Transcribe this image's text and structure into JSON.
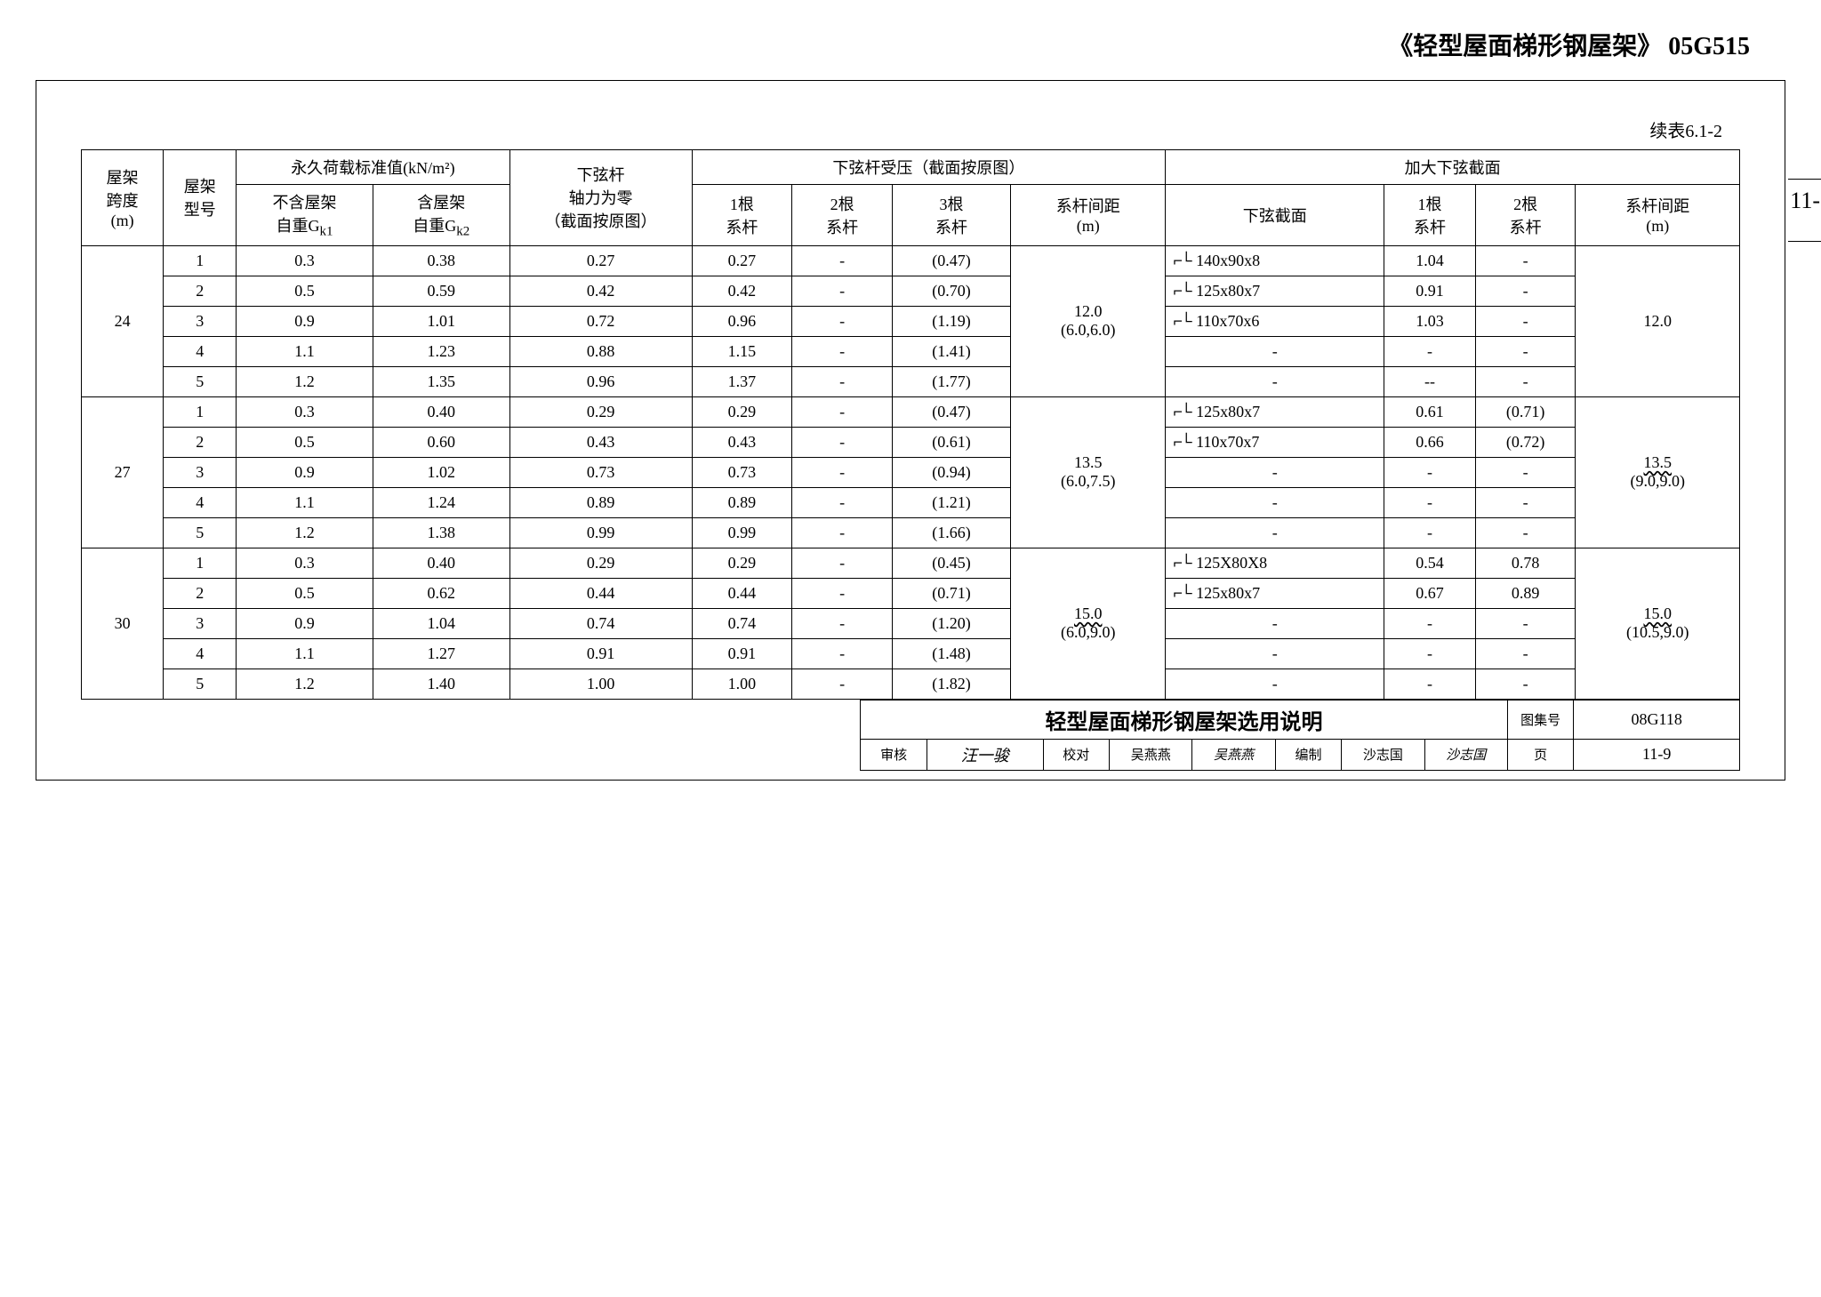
{
  "page": {
    "title": "《轻型屋面梯形钢屋架》 05G515",
    "table_label": "续表6.1-2",
    "side_note": "11-"
  },
  "headers": {
    "span": "屋架\n跨度\n(m)",
    "model": "屋架\n型号",
    "load_group": "永久荷载标准值(kN/m²)",
    "gk1": "不含屋架\n自重Gk1",
    "gk2": "含屋架\n自重Gk2",
    "axial": "下弦杆\n轴力为零\n（截面按原图）",
    "chord_group": "下弦杆受压（截面按原图）",
    "tie1": "1根\n系杆",
    "tie2": "2根\n系杆",
    "tie3": "3根\n系杆",
    "spacing": "系杆间距\n(m)",
    "enlarge_group": "加大下弦截面",
    "section": "下弦截面",
    "e_tie1": "1根\n系杆",
    "e_tie2": "2根\n系杆",
    "e_spacing": "系杆间距\n(m)"
  },
  "angle_symbol": "⌐└",
  "rows": [
    {
      "span": "24",
      "model": "1",
      "gk1": "0.3",
      "gk2": "0.38",
      "ax": "0.27",
      "t1": "0.27",
      "t2": "-",
      "t3": "(0.47)",
      "sp": "12.0\n(6.0,6.0)",
      "sec": "140x90x8",
      "et1": "1.04",
      "et2": "-",
      "esp": "12.0",
      "sec_sym": true,
      "sp_wavy": false,
      "esp_wavy": false
    },
    {
      "span": "",
      "model": "2",
      "gk1": "0.5",
      "gk2": "0.59",
      "ax": "0.42",
      "t1": "0.42",
      "t2": "-",
      "t3": "(0.70)",
      "sp": "",
      "sec": "125x80x7",
      "et1": "0.91",
      "et2": "-",
      "esp": "",
      "sec_sym": true
    },
    {
      "span": "",
      "model": "3",
      "gk1": "0.9",
      "gk2": "1.01",
      "ax": "0.72",
      "t1": "0.96",
      "t2": "-",
      "t3": "(1.19)",
      "sp": "",
      "sec": "110x70x6",
      "et1": "1.03",
      "et2": "-",
      "esp": "",
      "sec_sym": true
    },
    {
      "span": "",
      "model": "4",
      "gk1": "1.1",
      "gk2": "1.23",
      "ax": "0.88",
      "t1": "1.15",
      "t2": "-",
      "t3": "(1.41)",
      "sp": "",
      "sec": "-",
      "et1": "-",
      "et2": "-",
      "esp": "",
      "sec_sym": false
    },
    {
      "span": "",
      "model": "5",
      "gk1": "1.2",
      "gk2": "1.35",
      "ax": "0.96",
      "t1": "1.37",
      "t2": "-",
      "t3": "(1.77)",
      "sp": "",
      "sec": "-",
      "et1": "--",
      "et2": "-",
      "esp": "",
      "sec_sym": false
    },
    {
      "span": "27",
      "model": "1",
      "gk1": "0.3",
      "gk2": "0.40",
      "ax": "0.29",
      "t1": "0.29",
      "t2": "-",
      "t3": "(0.47)",
      "sp": "13.5\n(6.0,7.5)",
      "sec": "125x80x7",
      "et1": "0.61",
      "et2": "(0.71)",
      "esp": "13.5\n(9.0,9.0)",
      "sec_sym": true,
      "sp_wavy": false,
      "esp_wavy": true
    },
    {
      "span": "",
      "model": "2",
      "gk1": "0.5",
      "gk2": "0.60",
      "ax": "0.43",
      "t1": "0.43",
      "t2": "-",
      "t3": "(0.61)",
      "sp": "",
      "sec": "110x70x7",
      "et1": "0.66",
      "et2": "(0.72)",
      "esp": "",
      "sec_sym": true
    },
    {
      "span": "",
      "model": "3",
      "gk1": "0.9",
      "gk2": "1.02",
      "ax": "0.73",
      "t1": "0.73",
      "t2": "-",
      "t3": "(0.94)",
      "sp": "",
      "sec": "-",
      "et1": "-",
      "et2": "-",
      "esp": "",
      "sec_sym": false
    },
    {
      "span": "",
      "model": "4",
      "gk1": "1.1",
      "gk2": "1.24",
      "ax": "0.89",
      "t1": "0.89",
      "t2": "-",
      "t3": "(1.21)",
      "sp": "",
      "sec": "-",
      "et1": "-",
      "et2": "-",
      "esp": "",
      "sec_sym": false
    },
    {
      "span": "",
      "model": "5",
      "gk1": "1.2",
      "gk2": "1.38",
      "ax": "0.99",
      "t1": "0.99",
      "t2": "-",
      "t3": "(1.66)",
      "sp": "",
      "sec": "-",
      "et1": "-",
      "et2": "-",
      "esp": "",
      "sec_sym": false
    },
    {
      "span": "30",
      "model": "1",
      "gk1": "0.3",
      "gk2": "0.40",
      "ax": "0.29",
      "t1": "0.29",
      "t2": "-",
      "t3": "(0.45)",
      "sp": "15.0\n(6.0,9.0)",
      "sec": "125X80X8",
      "et1": "0.54",
      "et2": "0.78",
      "esp": "15.0\n(10.5,9.0)",
      "sec_sym": true,
      "sp_wavy": true,
      "esp_wavy": true
    },
    {
      "span": "",
      "model": "2",
      "gk1": "0.5",
      "gk2": "0.62",
      "ax": "0.44",
      "t1": "0.44",
      "t2": "-",
      "t3": "(0.71)",
      "sp": "",
      "sec": "125x80x7",
      "et1": "0.67",
      "et2": "0.89",
      "esp": "",
      "sec_sym": true
    },
    {
      "span": "",
      "model": "3",
      "gk1": "0.9",
      "gk2": "1.04",
      "ax": "0.74",
      "t1": "0.74",
      "t2": "-",
      "t3": "(1.20)",
      "sp": "",
      "sec": "-",
      "et1": "-",
      "et2": "-",
      "esp": "",
      "sec_sym": false
    },
    {
      "span": "",
      "model": "4",
      "gk1": "1.1",
      "gk2": "1.27",
      "ax": "0.91",
      "t1": "0.91",
      "t2": "-",
      "t3": "(1.48)",
      "sp": "",
      "sec": "-",
      "et1": "-",
      "et2": "-",
      "esp": "",
      "sec_sym": false
    },
    {
      "span": "",
      "model": "5",
      "gk1": "1.2",
      "gk2": "1.40",
      "ax": "1.00",
      "t1": "1.00",
      "t2": "-",
      "t3": "(1.82)",
      "sp": "",
      "sec": "-",
      "et1": "-",
      "et2": "-",
      "esp": "",
      "sec_sym": false
    }
  ],
  "footer": {
    "title": "轻型屋面梯形钢屋架选用说明",
    "atlas_label": "图集号",
    "atlas_no": "08G118",
    "review_label": "审核",
    "reviewer": "汪一骏",
    "check_label": "校对",
    "checker": "吴燕燕",
    "checker_sign": "吴燕燕",
    "compile_label": "编制",
    "compiler": "沙志国",
    "compiler_sign": "沙志国",
    "page_label": "页",
    "page_no": "11-9"
  },
  "colors": {
    "text": "#000000",
    "background": "#ffffff",
    "border": "#000000"
  }
}
